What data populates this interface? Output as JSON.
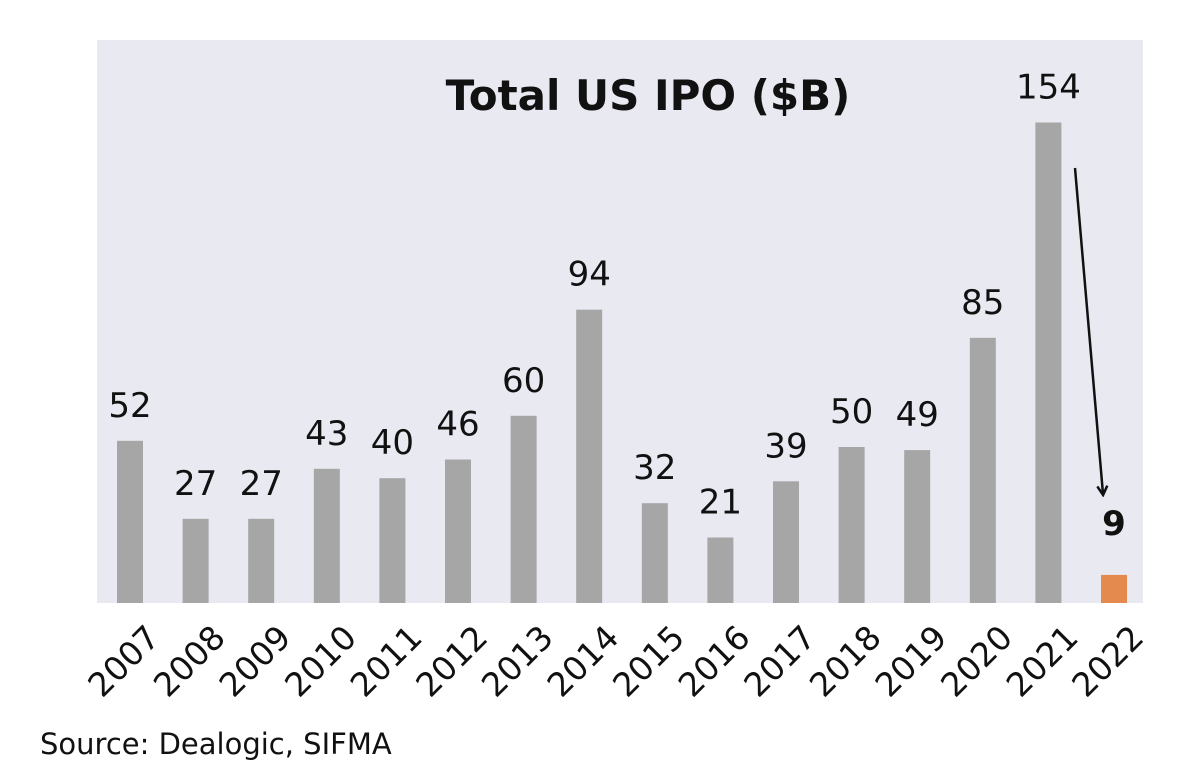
{
  "chart_data": {
    "type": "bar",
    "title": "Total US IPO ($B)",
    "xlabel": "",
    "ylabel": "",
    "categories": [
      "2007",
      "2008",
      "2009",
      "2010",
      "2011",
      "2012",
      "2013",
      "2014",
      "2015",
      "2016",
      "2017",
      "2018",
      "2019",
      "2020",
      "2021",
      "2022"
    ],
    "values": [
      52,
      27,
      27,
      43,
      40,
      46,
      60,
      94,
      32,
      21,
      39,
      50,
      49,
      85,
      154,
      9
    ],
    "data_labels": [
      "52",
      "27",
      "27",
      "43",
      "40",
      "46",
      "60",
      "94",
      "32",
      "21",
      "39",
      "50",
      "49",
      "85",
      "154",
      "9"
    ],
    "ylim": [
      0,
      180
    ],
    "grid": false,
    "legend": "none",
    "highlight_category": "2022",
    "colors": {
      "bar": "#a6a6a6",
      "highlight": "#e58a4e",
      "background": "#e9e9f2",
      "arrow": "#111111"
    },
    "annotations": [
      {
        "type": "arrow",
        "from_category": "2021",
        "to_category": "2022",
        "meaning": "decline"
      }
    ]
  },
  "source": "Source: Dealogic, SIFMA"
}
